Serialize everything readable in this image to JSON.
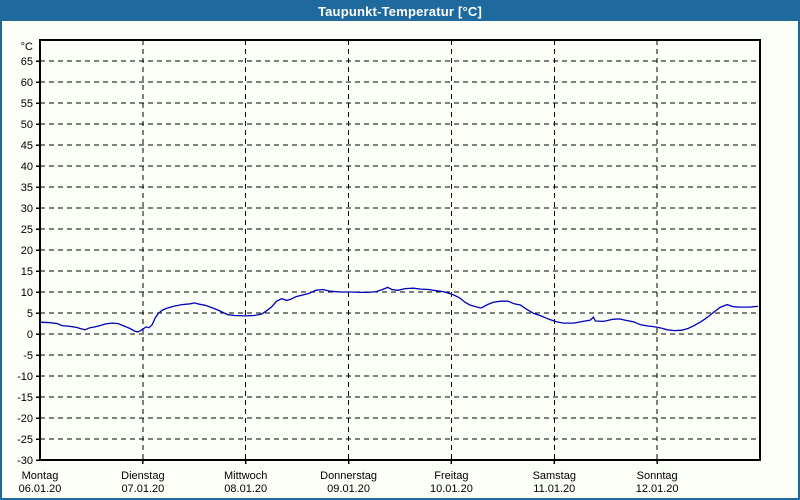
{
  "window": {
    "title": "Taupunkt-Temperatur [°C]",
    "titlebar_color": "#1E699E",
    "border_color": "#1E699E",
    "background_color": "#FCFFF7"
  },
  "chart_data": {
    "type": "line",
    "title": "Taupunkt-Temperatur [°C]",
    "y_unit_label": "°C",
    "ylim": [
      -30,
      70
    ],
    "yticks": [
      -30,
      -25,
      -20,
      -15,
      -10,
      -5,
      0,
      5,
      10,
      15,
      20,
      25,
      30,
      35,
      40,
      45,
      50,
      55,
      60,
      65
    ],
    "days": 7,
    "grid": "dashed-black",
    "legend": "none",
    "x_days": [
      {
        "name": "Montag",
        "date": "06.01.20"
      },
      {
        "name": "Dienstag",
        "date": "07.01.20"
      },
      {
        "name": "Mittwoch",
        "date": "08.01.20"
      },
      {
        "name": "Donnerstag",
        "date": "09.01.20"
      },
      {
        "name": "Freitag",
        "date": "10.01.20"
      },
      {
        "name": "Samstag",
        "date": "11.01.20"
      },
      {
        "name": "Sonntag",
        "date": "12.01.20"
      }
    ],
    "series": [
      {
        "name": "Taupunkt-Temperatur",
        "color": "#0000BB",
        "x_unit": "days_since_06.01.20",
        "y_unit": "degC",
        "points": [
          [
            0.0,
            2.8
          ],
          [
            0.1,
            2.7
          ],
          [
            0.165,
            2.5
          ],
          [
            0.214,
            2.0
          ],
          [
            0.292,
            1.8
          ],
          [
            0.35,
            1.6
          ],
          [
            0.408,
            1.2
          ],
          [
            0.437,
            1.0
          ],
          [
            0.486,
            1.5
          ],
          [
            0.535,
            1.7
          ],
          [
            0.583,
            2.0
          ],
          [
            0.64,
            2.4
          ],
          [
            0.7,
            2.6
          ],
          [
            0.758,
            2.5
          ],
          [
            0.817,
            1.9
          ],
          [
            0.875,
            1.3
          ],
          [
            0.92,
            0.7
          ],
          [
            0.95,
            0.5
          ],
          [
            0.98,
            0.8
          ],
          [
            1.01,
            1.3
          ],
          [
            1.03,
            1.7
          ],
          [
            1.06,
            1.5
          ],
          [
            1.09,
            2.2
          ],
          [
            1.12,
            3.8
          ],
          [
            1.15,
            4.9
          ],
          [
            1.19,
            5.7
          ],
          [
            1.23,
            6.1
          ],
          [
            1.3,
            6.6
          ],
          [
            1.38,
            7.0
          ],
          [
            1.46,
            7.2
          ],
          [
            1.5,
            7.4
          ],
          [
            1.55,
            7.1
          ],
          [
            1.61,
            6.8
          ],
          [
            1.68,
            6.2
          ],
          [
            1.74,
            5.6
          ],
          [
            1.79,
            5.0
          ],
          [
            1.83,
            4.6
          ],
          [
            1.89,
            4.4
          ],
          [
            2.0,
            4.3
          ],
          [
            2.08,
            4.4
          ],
          [
            2.15,
            4.7
          ],
          [
            2.19,
            5.3
          ],
          [
            2.25,
            6.4
          ],
          [
            2.3,
            7.8
          ],
          [
            2.35,
            8.4
          ],
          [
            2.4,
            8.0
          ],
          [
            2.44,
            8.3
          ],
          [
            2.49,
            8.9
          ],
          [
            2.56,
            9.3
          ],
          [
            2.62,
            9.7
          ],
          [
            2.68,
            10.4
          ],
          [
            2.75,
            10.6
          ],
          [
            2.82,
            10.2
          ],
          [
            2.92,
            10.0
          ],
          [
            3.03,
            10.0
          ],
          [
            3.11,
            9.9
          ],
          [
            3.19,
            9.9
          ],
          [
            3.27,
            10.1
          ],
          [
            3.33,
            10.6
          ],
          [
            3.38,
            11.1
          ],
          [
            3.42,
            10.6
          ],
          [
            3.48,
            10.4
          ],
          [
            3.55,
            10.8
          ],
          [
            3.63,
            10.9
          ],
          [
            3.7,
            10.7
          ],
          [
            3.78,
            10.6
          ],
          [
            3.85,
            10.3
          ],
          [
            3.92,
            10.1
          ],
          [
            3.99,
            9.6
          ],
          [
            4.03,
            9.2
          ],
          [
            4.08,
            8.6
          ],
          [
            4.13,
            7.6
          ],
          [
            4.18,
            6.9
          ],
          [
            4.25,
            6.4
          ],
          [
            4.29,
            6.2
          ],
          [
            4.35,
            7.0
          ],
          [
            4.41,
            7.6
          ],
          [
            4.48,
            7.8
          ],
          [
            4.55,
            7.8
          ],
          [
            4.61,
            7.2
          ],
          [
            4.67,
            6.9
          ],
          [
            4.73,
            5.9
          ],
          [
            4.8,
            4.9
          ],
          [
            4.87,
            4.3
          ],
          [
            4.95,
            3.5
          ],
          [
            5.02,
            2.9
          ],
          [
            5.09,
            2.6
          ],
          [
            5.19,
            2.6
          ],
          [
            5.28,
            3.0
          ],
          [
            5.35,
            3.3
          ],
          [
            5.38,
            4.0
          ],
          [
            5.4,
            3.1
          ],
          [
            5.48,
            3.0
          ],
          [
            5.57,
            3.5
          ],
          [
            5.63,
            3.6
          ],
          [
            5.71,
            3.2
          ],
          [
            5.77,
            2.9
          ],
          [
            5.84,
            2.2
          ],
          [
            5.91,
            1.9
          ],
          [
            5.98,
            1.7
          ],
          [
            6.04,
            1.4
          ],
          [
            6.1,
            1.0
          ],
          [
            6.17,
            0.8
          ],
          [
            6.24,
            0.9
          ],
          [
            6.3,
            1.3
          ],
          [
            6.36,
            2.0
          ],
          [
            6.43,
            3.0
          ],
          [
            6.49,
            4.0
          ],
          [
            6.55,
            5.2
          ],
          [
            6.61,
            6.3
          ],
          [
            6.68,
            7.0
          ],
          [
            6.74,
            6.5
          ],
          [
            6.8,
            6.4
          ],
          [
            6.9,
            6.4
          ],
          [
            6.98,
            6.6
          ]
        ]
      }
    ]
  }
}
